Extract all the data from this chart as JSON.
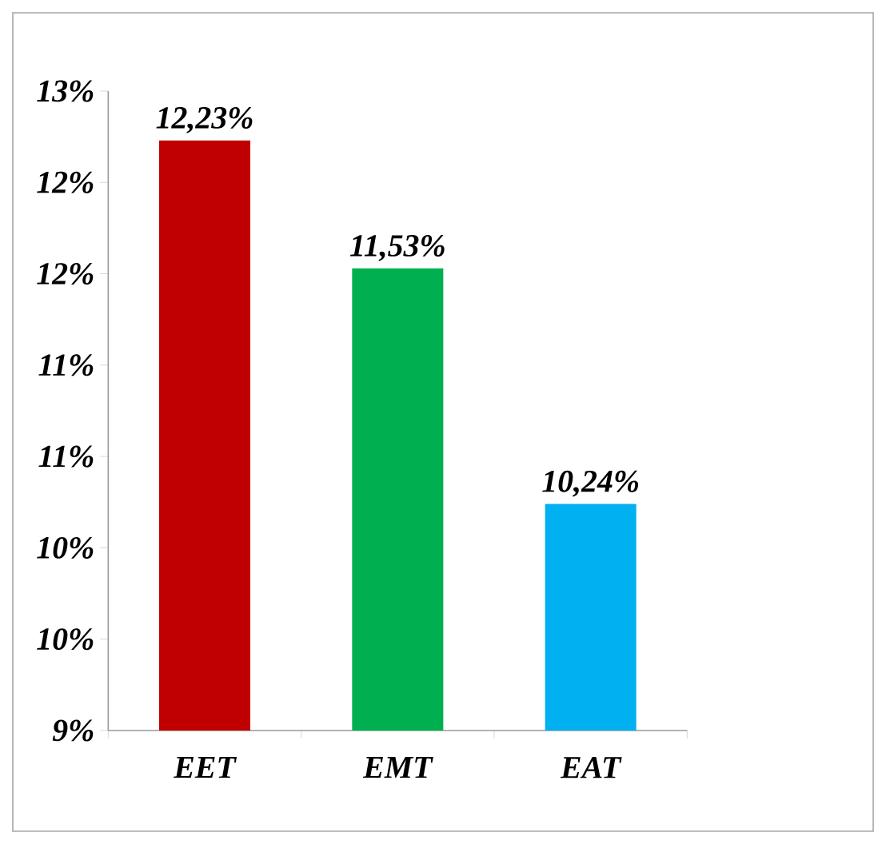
{
  "chart_data": {
    "type": "bar",
    "categories": [
      "EET",
      "EMT",
      "EAT"
    ],
    "values": [
      12.23,
      11.53,
      10.24
    ],
    "colors": [
      "#c00000",
      "#00b050",
      "#00b0f0"
    ],
    "value_labels": [
      "12,23%",
      "11,53%",
      "10,24%"
    ],
    "ylim": [
      9,
      12.5
    ],
    "yticks": [
      {
        "value": 9,
        "label": "9%"
      },
      {
        "value": 9.5,
        "label": "10%"
      },
      {
        "value": 10,
        "label": "10%"
      },
      {
        "value": 10.5,
        "label": "11%"
      },
      {
        "value": 11,
        "label": "11%"
      },
      {
        "value": 11.5,
        "label": "12%"
      },
      {
        "value": 12,
        "label": "12%"
      },
      {
        "value": 12.5,
        "label": "13%"
      }
    ]
  }
}
